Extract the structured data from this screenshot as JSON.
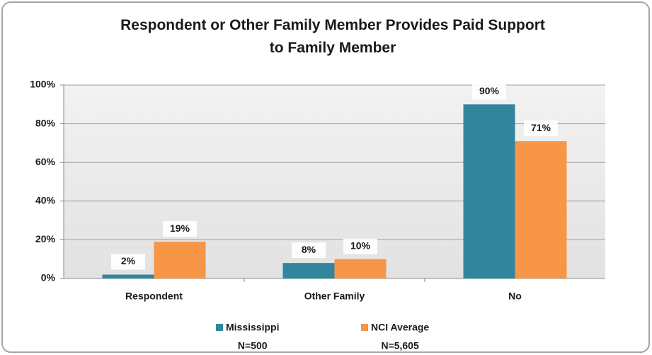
{
  "chart_data": {
    "type": "bar",
    "title": "Respondent or Other Family Member Provides Paid Support to Family Member",
    "categories": [
      "Respondent",
      "Other Family",
      "No"
    ],
    "series": [
      {
        "name": "Mississippi",
        "sample": "N=500",
        "color": "#31859c",
        "values": [
          2,
          8,
          90
        ],
        "value_labels": [
          "2%",
          "8%",
          "90%"
        ]
      },
      {
        "name": "NCI Average",
        "sample": "N=5,605",
        "color": "#f79646",
        "values": [
          19,
          10,
          71
        ],
        "value_labels": [
          "19%",
          "10%",
          "71%"
        ]
      }
    ],
    "ylim": [
      0,
      100
    ],
    "yticks": [
      {
        "value": 0,
        "label": "0%"
      },
      {
        "value": 20,
        "label": "20%"
      },
      {
        "value": 40,
        "label": "40%"
      },
      {
        "value": 60,
        "label": "60%"
      },
      {
        "value": 80,
        "label": "80%"
      },
      {
        "value": 100,
        "label": "100%"
      }
    ],
    "grid": true
  }
}
